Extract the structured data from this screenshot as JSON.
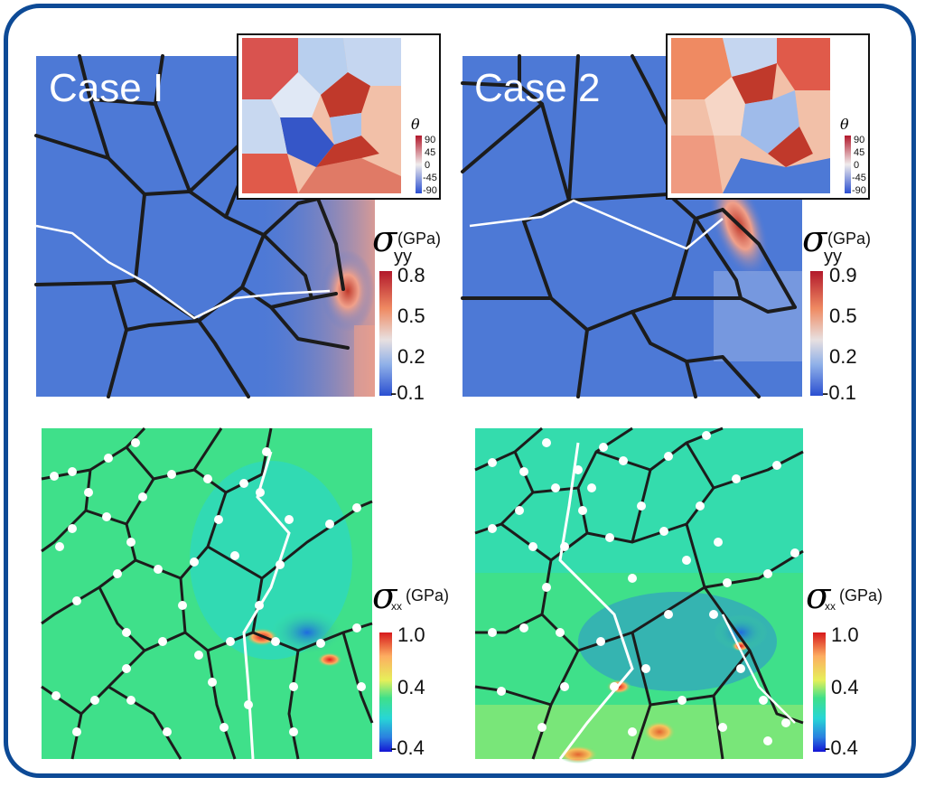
{
  "figure": {
    "top_left": {
      "case_label": "Case I"
    },
    "top_right": {
      "case_label": "Case 2"
    },
    "inset": {
      "symbol": "θ",
      "ticks": [
        "90",
        "45",
        "0",
        "-45",
        "-90"
      ]
    },
    "sigma_yy": {
      "symbol": "σ",
      "subscript": "yy",
      "unit": "(GPa)",
      "case1_ticks": [
        "0.8",
        "0.5",
        "0.2",
        "-0.1"
      ],
      "case2_ticks": [
        "0.9",
        "0.5",
        "0.2",
        "-0.1"
      ]
    },
    "sigma_xx": {
      "symbol": "σ",
      "subscript": "xx",
      "unit": "(GPa)",
      "ticks": [
        "1.0",
        "0.4",
        "-0.4"
      ]
    },
    "colors": {
      "frame": "#0d4a96",
      "blue_field": "#4d79d6",
      "green_field": "#3fe08a",
      "grain_boundary": "#1c1c1c"
    }
  }
}
